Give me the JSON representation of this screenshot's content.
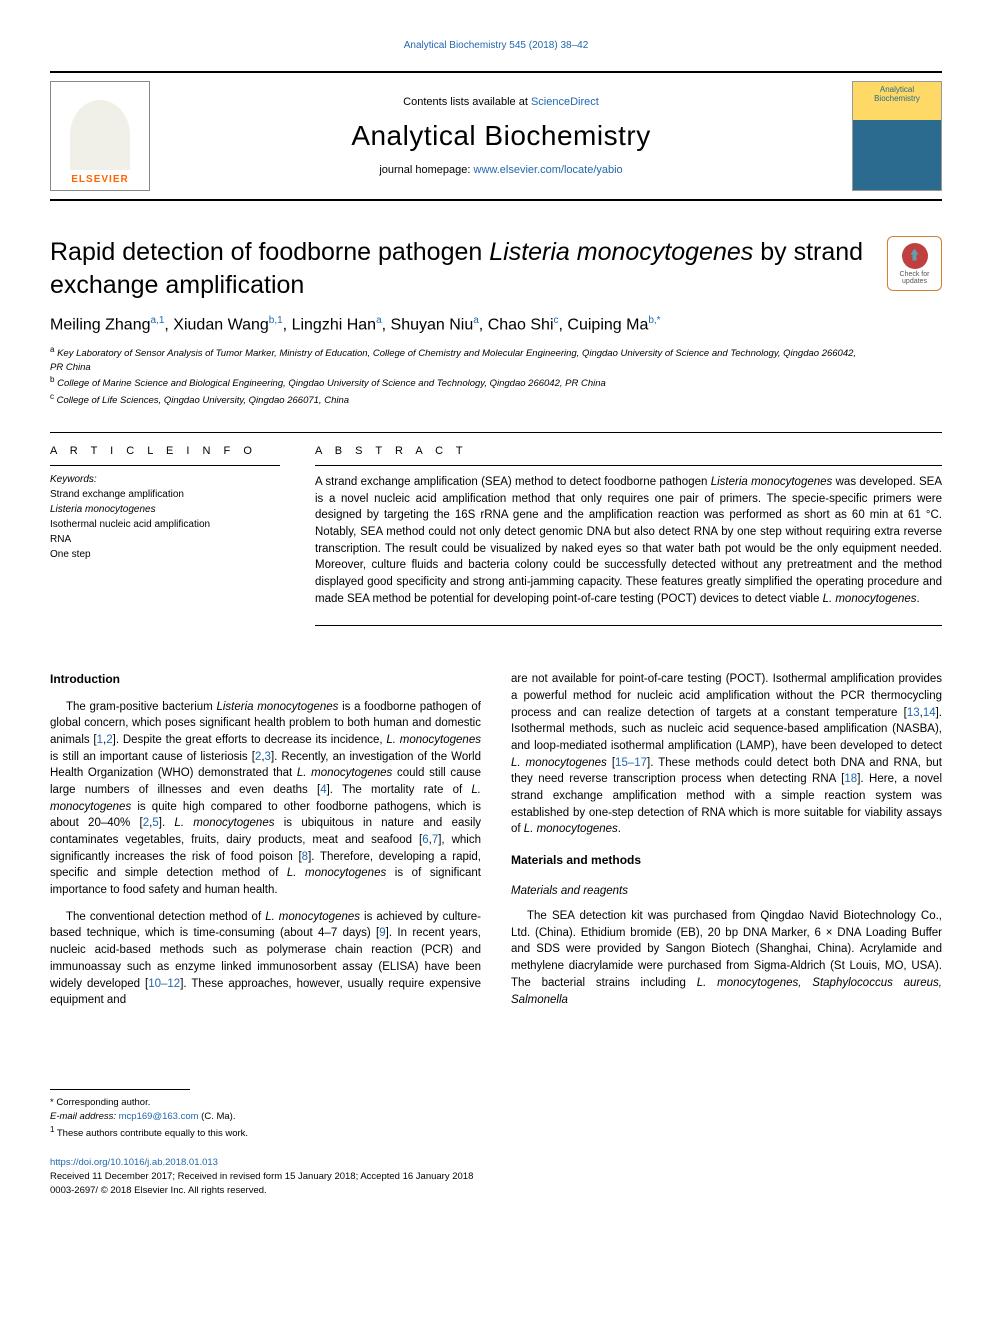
{
  "running_header": "Analytical Biochemistry 545 (2018) 38–42",
  "masthead": {
    "contents_prefix": "Contents lists available at ",
    "contents_link": "ScienceDirect",
    "journal_name": "Analytical Biochemistry",
    "homepage_prefix": "journal homepage: ",
    "homepage_link": "www.elsevier.com/locate/yabio",
    "elsevier_label": "ELSEVIER",
    "cover_label": "Analytical Biochemistry"
  },
  "check_updates_label": "Check for updates",
  "article": {
    "title_pre": "Rapid detection of foodborne pathogen ",
    "title_italic": "Listeria monocytogenes",
    "title_post": " by strand exchange amplification",
    "authors_html": "Meiling Zhang<sup>a,1</sup>, Xiudan Wang<sup>b,1</sup>, Lingzhi Han<sup>a</sup>, Shuyan Niu<sup>a</sup>, Chao Shi<sup>c</sup>, Cuiping Ma<sup>b,*</sup>",
    "affiliations": [
      "a Key Laboratory of Sensor Analysis of Tumor Marker, Ministry of Education, College of Chemistry and Molecular Engineering, Qingdao University of Science and Technology, Qingdao 266042, PR China",
      "b College of Marine Science and Biological Engineering, Qingdao University of Science and Technology, Qingdao 266042, PR China",
      "c College of Life Sciences, Qingdao University, Qingdao 266071, China"
    ]
  },
  "info": {
    "header": "A R T I C L E  I N F O",
    "keywords_label": "Keywords:",
    "keywords": [
      "Strand exchange amplification",
      "Listeria monocytogenes",
      "Isothermal nucleic acid amplification",
      "RNA",
      "One step"
    ]
  },
  "abstract": {
    "header": "A B S T R A C T",
    "text_parts": [
      "A strand exchange amplification (SEA) method to detect foodborne pathogen ",
      "Listeria monocytogenes",
      " was developed. SEA is a novel nucleic acid amplification method that only requires one pair of primers. The specie-specific primers were designed by targeting the 16S rRNA gene and the amplification reaction was performed as short as 60 min at 61 °C. Notably, SEA method could not only detect genomic DNA but also detect RNA by one step without requiring extra reverse transcription. The result could be visualized by naked eyes so that water bath pot would be the only equipment needed. Moreover, culture fluids and bacteria colony could be successfully detected without any pretreatment and the method displayed good specificity and strong anti-jamming capacity. These features greatly simplified the operating procedure and made SEA method be potential for developing point-of-care testing (POCT) devices to detect viable ",
      "L. monocytogenes",
      "."
    ]
  },
  "body": {
    "intro_heading": "Introduction",
    "intro_paras": [
      "The gram-positive bacterium <span class=\"italic\">Listeria monocytogenes</span> is a foodborne pathogen of global concern, which poses significant health problem to both human and domestic animals [<a class=\"ref\">1</a>,<a class=\"ref\">2</a>]. Despite the great efforts to decrease its incidence, <span class=\"italic\">L. monocytogenes</span> is still an important cause of listeriosis [<a class=\"ref\">2</a>,<a class=\"ref\">3</a>]. Recently, an investigation of the World Health Organization (WHO) demonstrated that <span class=\"italic\">L. monocytogenes</span> could still cause large numbers of illnesses and even deaths [<a class=\"ref\">4</a>]. The mortality rate of <span class=\"italic\">L. monocytogenes</span> is quite high compared to other foodborne pathogens, which is about 20–40% [<a class=\"ref\">2</a>,<a class=\"ref\">5</a>]. <span class=\"italic\">L. monocytogenes</span> is ubiquitous in nature and easily contaminates vegetables, fruits, dairy products, meat and seafood [<a class=\"ref\">6</a>,<a class=\"ref\">7</a>], which significantly increases the risk of food poison [<a class=\"ref\">8</a>]. Therefore, developing a rapid, specific and simple detection method of <span class=\"italic\">L. monocytogenes</span> is of significant importance to food safety and human health.",
      "The conventional detection method of <span class=\"italic\">L. monocytogenes</span> is achieved by culture-based technique, which is time-consuming (about 4–7 days) [<a class=\"ref\">9</a>]. In recent years, nucleic acid-based methods such as polymerase chain reaction (PCR) and immunoassay such as enzyme linked immunosorbent assay (ELISA) have been widely developed [<a class=\"ref\">10–12</a>]. These approaches, however, usually require expensive equipment and"
    ],
    "col2_paras": [
      "are not available for point-of-care testing (POCT). Isothermal amplification provides a powerful method for nucleic acid amplification without the PCR thermocycling process and can realize detection of targets at a constant temperature [<a class=\"ref\">13</a>,<a class=\"ref\">14</a>]. Isothermal methods, such as nucleic acid sequence-based amplification (NASBA), and loop-mediated isothermal amplification (LAMP), have been developed to detect <span class=\"italic\">L. monocytogenes</span> [<a class=\"ref\">15–17</a>]. These methods could detect both DNA and RNA, but they need reverse transcription process when detecting RNA [<a class=\"ref\">18</a>]. Here, a novel strand exchange amplification method with a simple reaction system was established by one-step detection of RNA which is more suitable for viability assays of <span class=\"italic\">L. monocytogenes</span>."
    ],
    "mm_heading": "Materials and methods",
    "mr_subheading": "Materials and reagents",
    "mr_para": "The SEA detection kit was purchased from Qingdao Navid Biotechnology Co., Ltd. (China). Ethidium bromide (EB), 20 bp DNA Marker, 6 × DNA Loading Buffer and SDS were provided by Sangon Biotech (Shanghai, China). Acrylamide and methylene diacrylamide were purchased from Sigma-Aldrich (St Louis, MO, USA). The bacterial strains including <span class=\"italic\">L. monocytogenes, Staphylococcus aureus, Salmonella</span>"
  },
  "footnotes": {
    "corresponding": "* Corresponding author.",
    "email_label": "E-mail address: ",
    "email_link": "mcp169@163.com",
    "email_suffix": " (C. Ma).",
    "equal": "1 These authors contribute equally to this work."
  },
  "doi": {
    "link": "https://doi.org/10.1016/j.ab.2018.01.013",
    "received": "Received 11 December 2017; Received in revised form 15 January 2018; Accepted 16 January 2018",
    "issn": "0003-2697/ © 2018 Elsevier Inc. All rights reserved."
  },
  "colors": {
    "link": "#2268b0",
    "elsevier_orange": "#ff6600",
    "rule": "#000000"
  }
}
